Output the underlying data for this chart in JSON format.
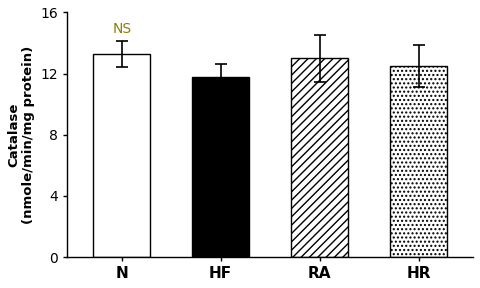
{
  "categories": [
    "N",
    "HF",
    "RA",
    "HR"
  ],
  "values": [
    13.3,
    11.8,
    13.0,
    12.5
  ],
  "errors": [
    0.85,
    0.85,
    1.55,
    1.35
  ],
  "bar_colors": [
    "white",
    "black",
    "white",
    "white"
  ],
  "hatches": [
    "",
    "",
    "////",
    "...."
  ],
  "edgecolors": [
    "black",
    "black",
    "black",
    "black"
  ],
  "ylabel_line1": "Catalase",
  "ylabel_line2": "(nmole/min/mg protein)",
  "ylim": [
    0,
    16
  ],
  "yticks": [
    0,
    4,
    8,
    12,
    16
  ],
  "annotation": "NS",
  "annotation_bar_index": 0,
  "annotation_color": "#8B8000",
  "bar_width": 0.58,
  "figsize": [
    4.8,
    2.88
  ],
  "dpi": 100,
  "background_color": "#ffffff"
}
